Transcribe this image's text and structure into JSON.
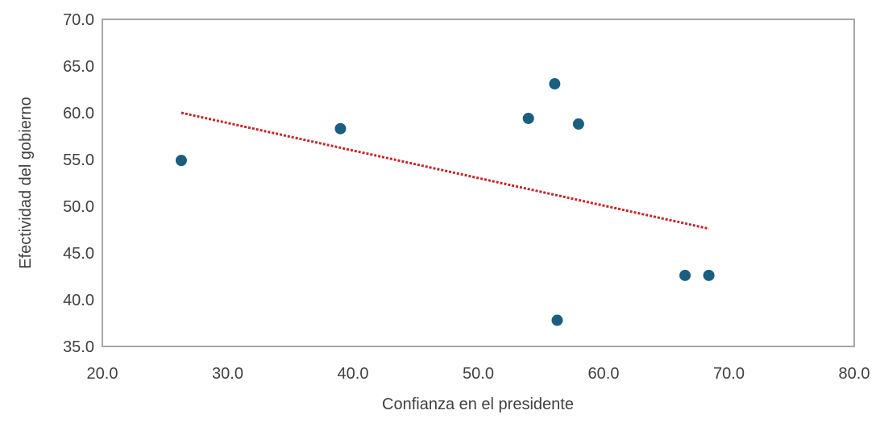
{
  "chart_data": {
    "type": "scatter",
    "title": "",
    "xlabel": "Confianza en el presidente",
    "ylabel": "Efectividad del gobierno",
    "xlim": [
      20,
      80
    ],
    "ylim": [
      35,
      70
    ],
    "xticks": [
      "20.0",
      "30.0",
      "40.0",
      "50.0",
      "60.0",
      "70.0",
      "80.0"
    ],
    "yticks": [
      "35.0",
      "40.0",
      "45.0",
      "50.0",
      "55.0",
      "60.0",
      "65.0",
      "70.0"
    ],
    "grid": false,
    "points": [
      {
        "x": 26.3,
        "y": 54.9
      },
      {
        "x": 39.0,
        "y": 58.3
      },
      {
        "x": 54.0,
        "y": 59.4
      },
      {
        "x": 56.1,
        "y": 63.1
      },
      {
        "x": 58.0,
        "y": 58.8
      },
      {
        "x": 56.3,
        "y": 37.8
      },
      {
        "x": 66.5,
        "y": 42.6
      },
      {
        "x": 68.4,
        "y": 42.6
      }
    ],
    "trendline": {
      "type": "linear",
      "x": [
        26.3,
        68.4
      ],
      "y": [
        60.0,
        47.6
      ]
    },
    "colors": {
      "point": "#1a5e80",
      "trend": "#c0282d",
      "axis": "#a6a6a6"
    }
  }
}
